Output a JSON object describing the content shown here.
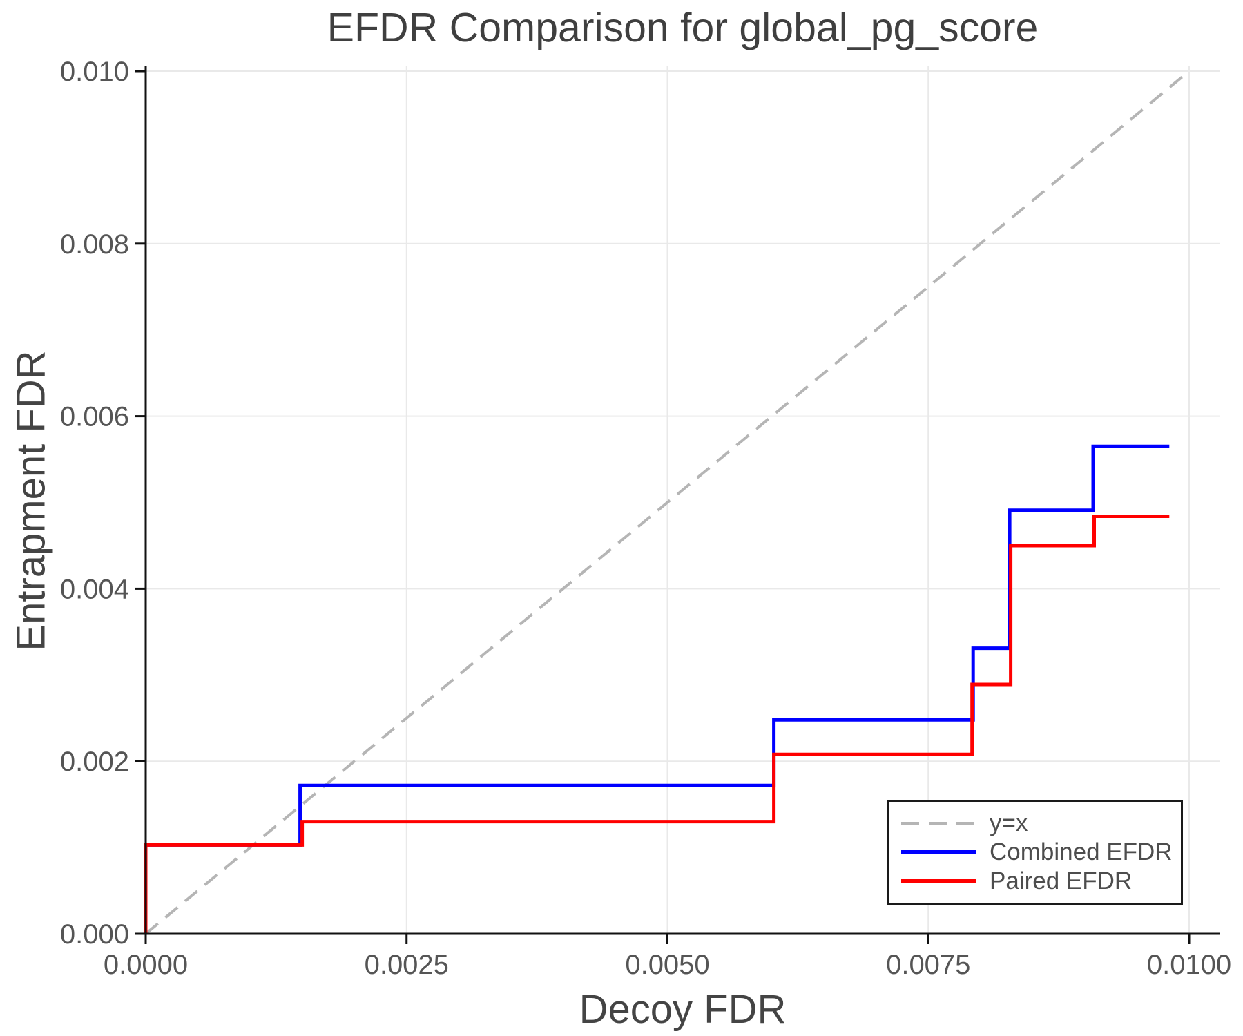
{
  "chart_data": {
    "type": "line",
    "step_mode": "post",
    "title": "EFDR Comparison for global_pg_score",
    "xlabel": "Decoy FDR",
    "ylabel": "Entrapment FDR",
    "xlim": [
      0,
      0.0103
    ],
    "ylim": [
      0,
      0.01006
    ],
    "grid": true,
    "grid_color": "#e9e9e9",
    "axis_color": "#111111",
    "tick_label_color": "#555555",
    "x_ticks": {
      "values": [
        0.0,
        0.0025,
        0.005,
        0.0075,
        0.01
      ],
      "labels": [
        "0.0000",
        "0.0025",
        "0.0050",
        "0.0075",
        "0.0100"
      ]
    },
    "y_ticks": {
      "values": [
        0.0,
        0.002,
        0.004,
        0.006,
        0.008,
        0.01
      ],
      "labels": [
        "0.000",
        "0.002",
        "0.004",
        "0.006",
        "0.008",
        "0.010"
      ]
    },
    "reference_line": {
      "label": "y=x",
      "x": [
        0,
        0.01
      ],
      "y": [
        0,
        0.01
      ],
      "color": "#b5b5b5",
      "dashed": true
    },
    "series": [
      {
        "name": "Combined EFDR",
        "color": "#0000ff",
        "start": [
          0,
          0
        ],
        "points": [
          [
            0.0,
            0.00103
          ],
          [
            0.00148,
            0.00172
          ],
          [
            0.00602,
            0.00248
          ],
          [
            0.00793,
            0.00331
          ],
          [
            0.00828,
            0.00491
          ],
          [
            0.00908,
            0.00565
          ],
          [
            0.00981,
            0.00565
          ]
        ]
      },
      {
        "name": "Paired EFDR",
        "color": "#ff0000",
        "start": [
          0,
          0
        ],
        "points": [
          [
            0.0,
            0.00103
          ],
          [
            0.0015,
            0.0013
          ],
          [
            0.00602,
            0.00208
          ],
          [
            0.00792,
            0.00289
          ],
          [
            0.00829,
            0.0045
          ],
          [
            0.00909,
            0.00484
          ],
          [
            0.00981,
            0.00484
          ]
        ]
      }
    ],
    "legend": {
      "position": "lower right",
      "entries": [
        {
          "label": "y=x",
          "color": "#b5b5b5",
          "dashed": true
        },
        {
          "label": "Combined EFDR",
          "color": "#0000ff",
          "dashed": false
        },
        {
          "label": "Paired EFDR",
          "color": "#ff0000",
          "dashed": false
        }
      ]
    }
  }
}
